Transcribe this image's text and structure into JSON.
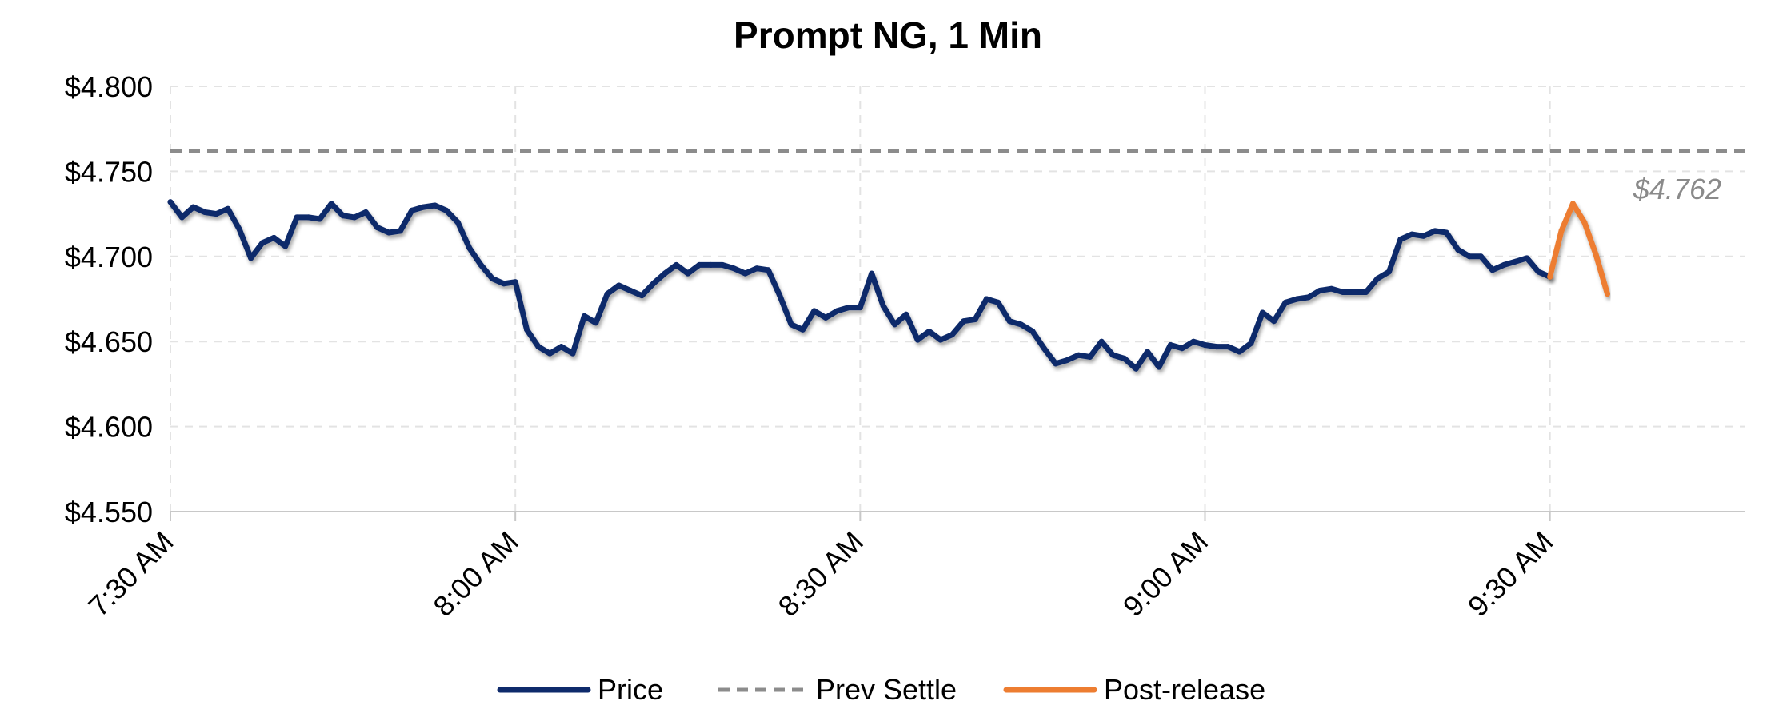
{
  "chart_data": {
    "type": "line",
    "title": "Prompt NG, 1 Min",
    "xlabel": "",
    "ylabel": "",
    "x_tick_labels": [
      "7:30 AM",
      "8:00 AM",
      "8:30 AM",
      "9:00 AM",
      "9:30 AM"
    ],
    "x_range_minutes": [
      0,
      137
    ],
    "y_tick_labels": [
      "$4.800",
      "$4.750",
      "$4.700",
      "$4.650",
      "$4.600",
      "$4.550"
    ],
    "ylim": [
      4.55,
      4.8
    ],
    "grid": true,
    "legend_position": "bottom",
    "reference_line": {
      "name": "Prev Settle",
      "value": 4.762,
      "label": "$4.762",
      "color": "#8c8c8c",
      "style": "dashed"
    },
    "series": [
      {
        "name": "Price",
        "color": "#0e2a6b",
        "points": [
          [
            0,
            4.732
          ],
          [
            1,
            4.723
          ],
          [
            2,
            4.729
          ],
          [
            3,
            4.726
          ],
          [
            4,
            4.725
          ],
          [
            5,
            4.728
          ],
          [
            6,
            4.716
          ],
          [
            7,
            4.699
          ],
          [
            8,
            4.708
          ],
          [
            9,
            4.711
          ],
          [
            10,
            4.706
          ],
          [
            11,
            4.723
          ],
          [
            12,
            4.723
          ],
          [
            13,
            4.722
          ],
          [
            14,
            4.731
          ],
          [
            15,
            4.724
          ],
          [
            16,
            4.723
          ],
          [
            17,
            4.726
          ],
          [
            18,
            4.717
          ],
          [
            19,
            4.714
          ],
          [
            20,
            4.715
          ],
          [
            21,
            4.727
          ],
          [
            22,
            4.729
          ],
          [
            23,
            4.73
          ],
          [
            24,
            4.727
          ],
          [
            25,
            4.72
          ],
          [
            26,
            4.705
          ],
          [
            27,
            4.695
          ],
          [
            28,
            4.687
          ],
          [
            29,
            4.684
          ],
          [
            30,
            4.685
          ],
          [
            31,
            4.657
          ],
          [
            32,
            4.647
          ],
          [
            33,
            4.643
          ],
          [
            34,
            4.647
          ],
          [
            35,
            4.643
          ],
          [
            36,
            4.665
          ],
          [
            37,
            4.661
          ],
          [
            38,
            4.678
          ],
          [
            39,
            4.683
          ],
          [
            40,
            4.68
          ],
          [
            41,
            4.677
          ],
          [
            42,
            4.684
          ],
          [
            43,
            4.69
          ],
          [
            44,
            4.695
          ],
          [
            45,
            4.69
          ],
          [
            46,
            4.695
          ],
          [
            47,
            4.695
          ],
          [
            48,
            4.695
          ],
          [
            49,
            4.693
          ],
          [
            50,
            4.69
          ],
          [
            51,
            4.693
          ],
          [
            52,
            4.692
          ],
          [
            53,
            4.677
          ],
          [
            54,
            4.66
          ],
          [
            55,
            4.657
          ],
          [
            56,
            4.668
          ],
          [
            57,
            4.664
          ],
          [
            58,
            4.668
          ],
          [
            59,
            4.67
          ],
          [
            60,
            4.67
          ],
          [
            61,
            4.69
          ],
          [
            62,
            4.671
          ],
          [
            63,
            4.66
          ],
          [
            64,
            4.666
          ],
          [
            65,
            4.651
          ],
          [
            66,
            4.656
          ],
          [
            67,
            4.651
          ],
          [
            68,
            4.654
          ],
          [
            69,
            4.662
          ],
          [
            70,
            4.663
          ],
          [
            71,
            4.675
          ],
          [
            72,
            4.673
          ],
          [
            73,
            4.662
          ],
          [
            74,
            4.66
          ],
          [
            75,
            4.656
          ],
          [
            76,
            4.646
          ],
          [
            77,
            4.637
          ],
          [
            78,
            4.639
          ],
          [
            79,
            4.642
          ],
          [
            80,
            4.641
          ],
          [
            81,
            4.65
          ],
          [
            82,
            4.642
          ],
          [
            83,
            4.64
          ],
          [
            84,
            4.634
          ],
          [
            85,
            4.644
          ],
          [
            86,
            4.635
          ],
          [
            87,
            4.648
          ],
          [
            88,
            4.646
          ],
          [
            89,
            4.65
          ],
          [
            90,
            4.648
          ],
          [
            91,
            4.647
          ],
          [
            92,
            4.647
          ],
          [
            93,
            4.644
          ],
          [
            94,
            4.649
          ],
          [
            95,
            4.667
          ],
          [
            96,
            4.662
          ],
          [
            97,
            4.673
          ],
          [
            98,
            4.675
          ],
          [
            99,
            4.676
          ],
          [
            100,
            4.68
          ],
          [
            101,
            4.681
          ],
          [
            102,
            4.679
          ],
          [
            103,
            4.679
          ],
          [
            104,
            4.679
          ],
          [
            105,
            4.687
          ],
          [
            106,
            4.691
          ],
          [
            107,
            4.71
          ],
          [
            108,
            4.713
          ],
          [
            109,
            4.712
          ],
          [
            110,
            4.715
          ],
          [
            111,
            4.714
          ],
          [
            112,
            4.704
          ],
          [
            113,
            4.7
          ],
          [
            114,
            4.7
          ],
          [
            115,
            4.692
          ],
          [
            116,
            4.695
          ],
          [
            117,
            4.697
          ],
          [
            118,
            4.699
          ],
          [
            119,
            4.691
          ],
          [
            120,
            4.688
          ]
        ]
      },
      {
        "name": "Post-release",
        "color": "#ed7d31",
        "points": [
          [
            120,
            4.688
          ],
          [
            121,
            4.715
          ],
          [
            122,
            4.731
          ],
          [
            123,
            4.72
          ],
          [
            124,
            4.701
          ],
          [
            125,
            4.678
          ]
        ]
      }
    ],
    "legend": [
      {
        "label": "Price",
        "color": "#0e2a6b",
        "style": "solid"
      },
      {
        "label": "Prev Settle",
        "color": "#8c8c8c",
        "style": "dashed"
      },
      {
        "label": "Post-release",
        "color": "#ed7d31",
        "style": "solid"
      }
    ]
  }
}
